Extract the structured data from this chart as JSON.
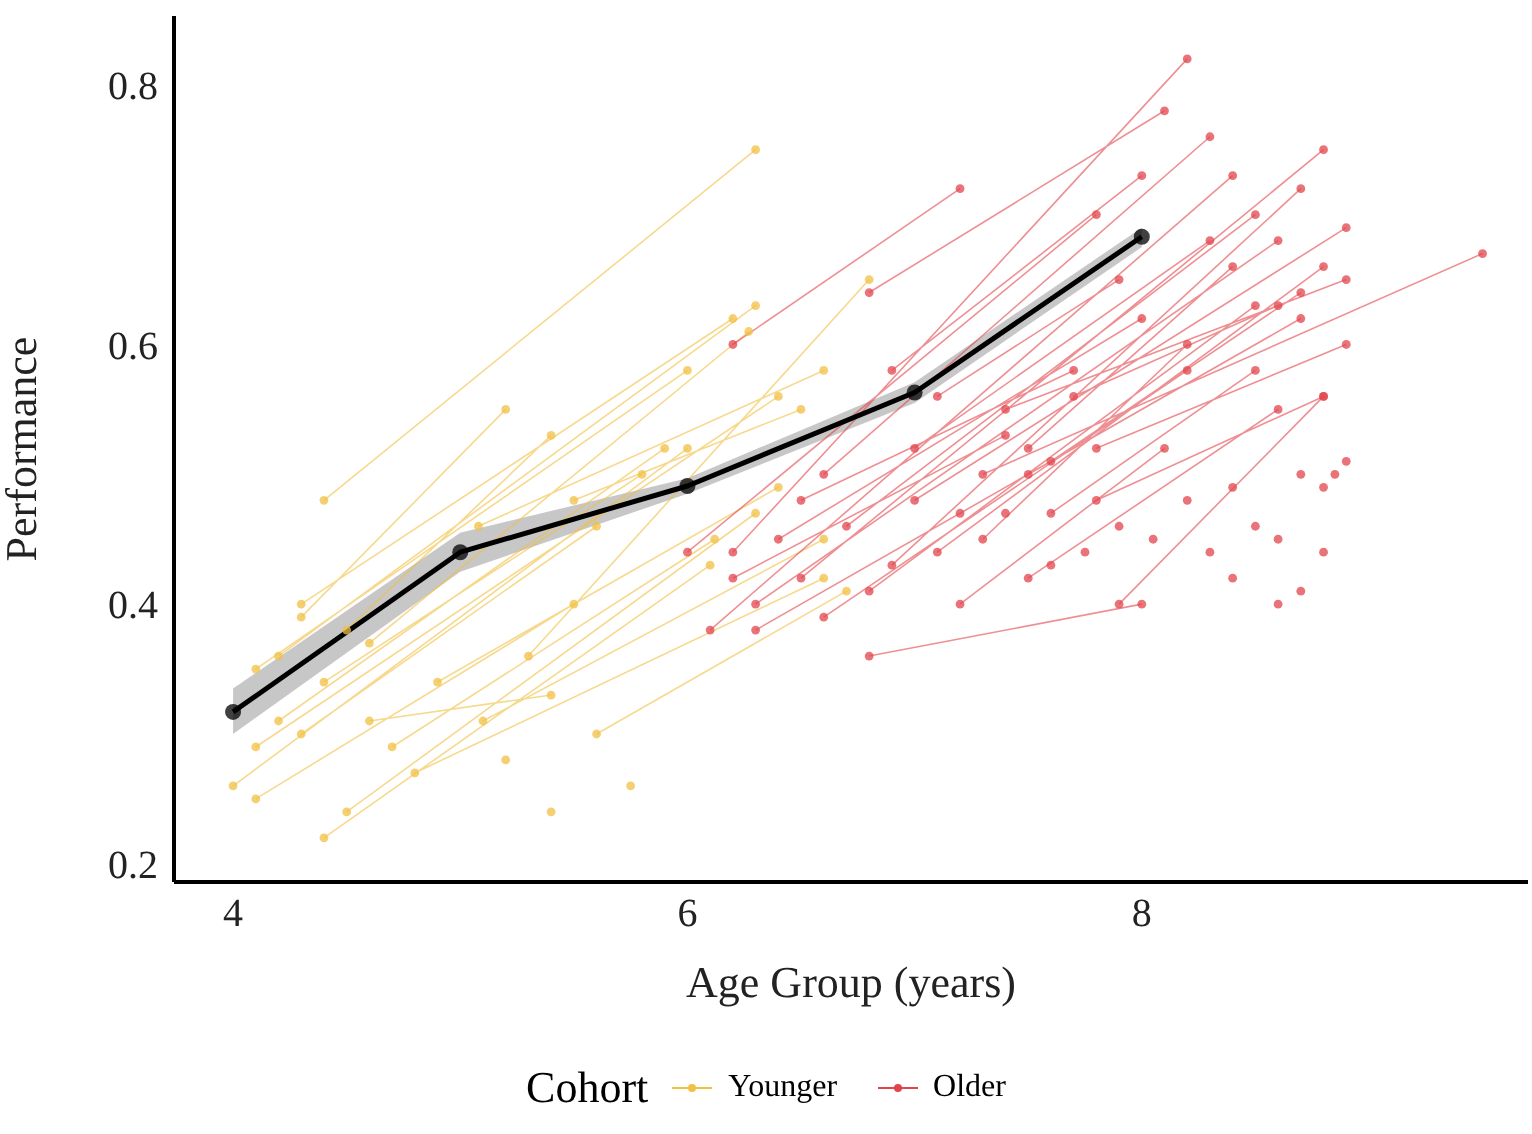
{
  "chart_data": {
    "type": "line",
    "xlabel": "Age Group (years)",
    "ylabel": "Performance",
    "legend_title": "Cohort",
    "legend": "bottom",
    "marker": "circle",
    "xlim": [
      3.74,
      9.7
    ],
    "xticks": [
      4,
      6,
      8
    ],
    "ylim": [
      0.186,
      0.853
    ],
    "yticks": [
      0.2,
      0.4,
      0.6,
      0.8
    ],
    "series": [
      {
        "name": "Younger",
        "color": "#f2c043",
        "x": [
          4.4,
          6.3,
          null,
          4.3,
          6.2,
          null,
          4.2,
          6.3,
          null,
          4.3,
          5.2,
          null,
          4.5,
          5.4,
          null,
          4.1,
          6.0,
          null,
          4.6,
          6.27,
          null,
          4.2,
          5.9,
          null,
          4.1,
          6.4,
          null,
          4.3,
          5.6,
          null,
          4.0,
          6.0,
          null,
          4.1,
          5.5,
          null,
          4.5,
          6.3,
          null,
          4.4,
          6.1,
          null,
          4.9,
          6.4,
          null,
          4.7,
          6.12,
          null,
          5.1,
          6.6,
          null,
          4.8,
          6.6,
          null,
          5.3,
          6.8,
          null,
          5.08,
          6.6,
          null,
          4.4,
          5.8,
          null,
          5.6,
          6.7,
          null,
          4.6,
          5.4,
          null,
          5.5,
          6.5,
          null,
          5.4,
          null,
          5.75,
          null,
          5.2
        ],
        "values": [
          0.48,
          0.75,
          null,
          0.4,
          0.62,
          null,
          0.36,
          0.63,
          null,
          0.39,
          0.55,
          null,
          0.38,
          0.53,
          null,
          0.35,
          0.58,
          null,
          0.37,
          0.61,
          null,
          0.31,
          0.52,
          null,
          0.29,
          0.56,
          null,
          0.3,
          0.46,
          null,
          0.26,
          0.52,
          null,
          0.25,
          0.4,
          null,
          0.24,
          0.47,
          null,
          0.22,
          0.43,
          null,
          0.34,
          0.49,
          null,
          0.29,
          0.45,
          null,
          0.31,
          0.45,
          null,
          0.27,
          0.42,
          null,
          0.36,
          0.65,
          null,
          0.46,
          0.58,
          null,
          0.34,
          0.5,
          null,
          0.3,
          0.41,
          null,
          0.31,
          0.33,
          null,
          0.48,
          0.55,
          null,
          0.24,
          null,
          0.26,
          null,
          0.28
        ]
      },
      {
        "name": "Older",
        "color": "#e2444b",
        "x": [
          6.2,
          8.2,
          null,
          6.8,
          8.1,
          null,
          6.2,
          7.2,
          null,
          6.6,
          8.3,
          null,
          6.0,
          7.8,
          null,
          6.1,
          8.4,
          null,
          6.3,
          8.6,
          null,
          6.5,
          8.8,
          null,
          6.7,
          8.5,
          null,
          6.9,
          8.7,
          null,
          6.4,
          8.0,
          null,
          7.0,
          8.9,
          null,
          7.3,
          9.5,
          null,
          6.3,
          7.5,
          null,
          6.6,
          8.2,
          null,
          6.8,
          8.5,
          null,
          7.1,
          8.8,
          null,
          7.2,
          8.7,
          null,
          7.5,
          8.4,
          null,
          7.6,
          8.7,
          null,
          7.4,
          8.9,
          null,
          7.0,
          8.3,
          null,
          6.9,
          8.0,
          null,
          7.7,
          8.6,
          null,
          7.8,
          8.8,
          null,
          6.8,
          8.0,
          null,
          7.9,
          8.8,
          null,
          7.3,
          8.2,
          null,
          7.6,
          8.5,
          null,
          7.1,
          7.9,
          null,
          6.5,
          7.7,
          null,
          7.8,
          8.9,
          null,
          6.2,
          7.4,
          null,
          7.5,
          8.6,
          null,
          7.2,
          8.1,
          null,
          8.4,
          null,
          8.5,
          null,
          8.6,
          null,
          8.7,
          null,
          8.8,
          null,
          8.85,
          null,
          8.9,
          null,
          8.6,
          null,
          8.4,
          null,
          8.2,
          null,
          8.05,
          null,
          7.4,
          null,
          7.6,
          null,
          7.9,
          null,
          8.3,
          null,
          8.8,
          null,
          8.7,
          null,
          7.75
        ],
        "values": [
          0.44,
          0.82,
          null,
          0.64,
          0.78,
          null,
          0.6,
          0.72,
          null,
          0.5,
          0.76,
          null,
          0.44,
          0.7,
          null,
          0.38,
          0.73,
          null,
          0.4,
          0.68,
          null,
          0.42,
          0.75,
          null,
          0.46,
          0.7,
          null,
          0.43,
          0.72,
          null,
          0.45,
          0.62,
          null,
          0.48,
          0.69,
          null,
          0.5,
          0.67,
          null,
          0.38,
          0.5,
          null,
          0.39,
          0.58,
          null,
          0.41,
          0.63,
          null,
          0.44,
          0.66,
          null,
          0.47,
          0.62,
          null,
          0.52,
          0.66,
          null,
          0.51,
          0.64,
          null,
          0.55,
          0.65,
          null,
          0.52,
          0.68,
          null,
          0.58,
          0.73,
          null,
          0.56,
          0.63,
          null,
          0.48,
          0.56,
          null,
          0.36,
          0.4,
          null,
          0.4,
          0.56,
          null,
          0.45,
          0.6,
          null,
          0.47,
          0.58,
          null,
          0.56,
          0.65,
          null,
          0.48,
          0.58,
          null,
          0.52,
          0.6,
          null,
          0.42,
          0.53,
          null,
          0.42,
          0.55,
          null,
          0.4,
          0.52,
          null,
          0.49,
          null,
          0.46,
          null,
          0.45,
          null,
          0.5,
          null,
          0.49,
          null,
          0.5,
          null,
          0.51,
          null,
          0.4,
          null,
          0.42,
          null,
          0.48,
          null,
          0.45,
          null,
          0.47,
          null,
          0.43,
          null,
          0.46,
          null,
          0.44,
          null,
          0.44,
          null,
          0.41,
          null,
          0.44
        ]
      },
      {
        "color": "#000000",
        "x": [
          4,
          5,
          6,
          7,
          8
        ],
        "values": [
          0.317,
          0.44,
          0.491,
          0.563,
          0.683
        ],
        "lower": [
          0.3,
          0.425,
          0.485,
          0.555,
          0.675
        ],
        "upper": [
          0.335,
          0.455,
          0.497,
          0.571,
          0.69
        ]
      }
    ]
  }
}
